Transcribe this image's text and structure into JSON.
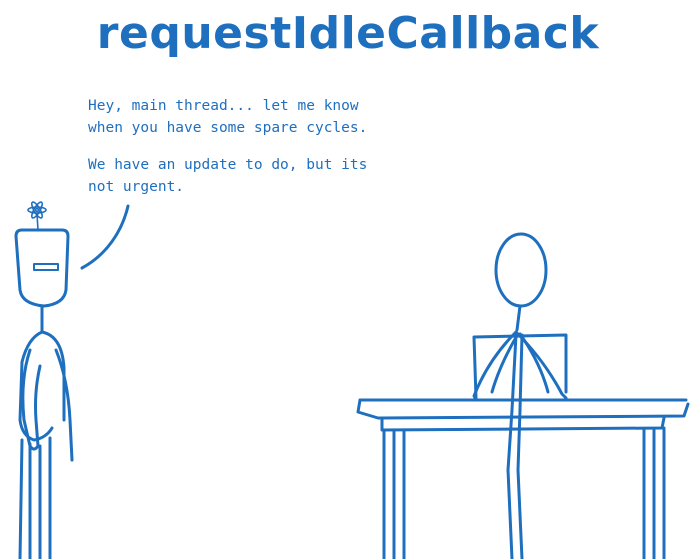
{
  "title": "requestIdleCallback",
  "speech": {
    "paragraph_1": [
      "Hey, main thread... let me know",
      "when you have some spare cycles."
    ],
    "paragraph_2": [
      "We have an update to do, but its",
      "not urgent."
    ]
  },
  "colors": {
    "ink": "#1f6fbf",
    "background": "#ffffff"
  },
  "icons": [
    "flower-icon"
  ]
}
